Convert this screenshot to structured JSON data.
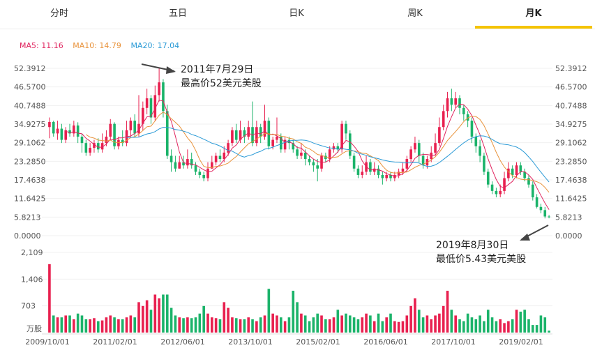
{
  "tabs": [
    {
      "label": "分时",
      "active": false
    },
    {
      "label": "五日",
      "active": false
    },
    {
      "label": "日K",
      "active": false
    },
    {
      "label": "周K",
      "active": false
    },
    {
      "label": "月K",
      "active": true
    }
  ],
  "ma": {
    "ma5": {
      "label": "MA5: 11.16",
      "color": "#e0245e"
    },
    "ma10": {
      "label": "MA10: 14.79",
      "color": "#e8923a"
    },
    "ma20": {
      "label": "MA20: 17.04",
      "color": "#2a9ad6"
    }
  },
  "colors": {
    "up": "#e8204f",
    "down": "#1bb36a"
  },
  "annotations": {
    "high_line1": "2011年7月29日",
    "high_line2": "最高价52美元美股",
    "low_line1": "2019年8月30日",
    "low_line2": "最低价5.43美元美股"
  },
  "chart_data": {
    "type": "candlestick",
    "price_ticks": [
      "52.3912",
      "46.5700",
      "40.7488",
      "34.9275",
      "29.1062",
      "23.2850",
      "17.4638",
      "11.6425",
      "5.8213",
      "0.0000"
    ],
    "price_range": [
      0,
      52.3912
    ],
    "volume_ticks": [
      "2,109",
      "1,406",
      "703"
    ],
    "volume_unit": "万股",
    "volume_range": [
      0,
      2109
    ],
    "x_labels": [
      "2009/10/01",
      "2011/02/01",
      "2012/06/01",
      "2013/10/01",
      "2015/02/01",
      "2016/06/01",
      "2017/10/01",
      "2019/02/01"
    ],
    "candles": [
      [
        34,
        35.6,
        37,
        30.5,
        1800
      ],
      [
        35.6,
        32,
        36,
        31,
        450
      ],
      [
        32,
        33.5,
        36,
        30,
        400
      ],
      [
        33.5,
        30,
        35,
        29,
        400
      ],
      [
        30,
        33,
        34,
        29,
        450
      ],
      [
        33,
        32,
        35,
        31,
        450
      ],
      [
        32,
        34.5,
        36,
        31,
        350
      ],
      [
        34.5,
        31,
        35.5,
        29,
        500
      ],
      [
        31,
        29,
        32,
        26,
        450
      ],
      [
        29,
        26,
        30,
        25,
        350
      ],
      [
        26,
        27.5,
        29,
        25,
        350
      ],
      [
        27.5,
        29,
        30,
        26,
        380
      ],
      [
        29,
        27,
        30.5,
        26,
        300
      ],
      [
        27,
        29,
        32,
        26,
        320
      ],
      [
        29,
        31,
        33,
        28,
        400
      ],
      [
        31,
        35,
        36.5,
        30,
        450
      ],
      [
        35,
        28,
        35.5,
        27,
        400
      ],
      [
        28,
        30,
        31,
        27,
        350
      ],
      [
        30,
        29,
        33,
        28,
        350
      ],
      [
        29,
        33,
        36,
        28,
        400
      ],
      [
        33,
        36,
        37,
        31,
        450
      ],
      [
        36,
        32,
        38,
        31,
        400
      ],
      [
        32,
        35,
        44,
        31,
        800
      ],
      [
        35,
        40,
        42,
        33,
        700
      ],
      [
        40,
        43,
        46,
        38,
        850
      ],
      [
        43,
        37,
        44,
        35,
        600
      ],
      [
        37,
        44,
        47,
        36,
        1000
      ],
      [
        44,
        48,
        52.4,
        42,
        900
      ],
      [
        48,
        39,
        49,
        37,
        1000
      ],
      [
        39,
        25,
        41,
        24,
        1000
      ],
      [
        25,
        23,
        27,
        20,
        650
      ],
      [
        23,
        21,
        25,
        20,
        450
      ],
      [
        21,
        23,
        25,
        21,
        400
      ],
      [
        23,
        22,
        25,
        21,
        380
      ],
      [
        22,
        24,
        27,
        21,
        400
      ],
      [
        24,
        22,
        26,
        21,
        380
      ],
      [
        22,
        20,
        23,
        19,
        400
      ],
      [
        20,
        19,
        21,
        18,
        500
      ],
      [
        19,
        18,
        20,
        17,
        700
      ],
      [
        18,
        21,
        23,
        17,
        500
      ],
      [
        21,
        23,
        25,
        21,
        400
      ],
      [
        23,
        25,
        26,
        22,
        380
      ],
      [
        25,
        24,
        27,
        23,
        350
      ],
      [
        24,
        26,
        28,
        23,
        800
      ],
      [
        26,
        29,
        30,
        25,
        650
      ],
      [
        29,
        33,
        34,
        28,
        400
      ],
      [
        33,
        30,
        35,
        29,
        380
      ],
      [
        30,
        33,
        36,
        29,
        350
      ],
      [
        33,
        31,
        34,
        29,
        350
      ],
      [
        31,
        34,
        36,
        30,
        400
      ],
      [
        34,
        29,
        42,
        28,
        350
      ],
      [
        29,
        34,
        36,
        28,
        300
      ],
      [
        34,
        31,
        35,
        29,
        400
      ],
      [
        31,
        36,
        41,
        30,
        450
      ],
      [
        36,
        28,
        37,
        27,
        1150
      ],
      [
        28,
        30,
        31,
        27,
        500
      ],
      [
        30,
        31,
        37,
        29,
        450
      ],
      [
        31,
        27,
        32,
        26,
        400
      ],
      [
        27,
        30,
        31,
        26,
        300
      ],
      [
        30,
        29,
        31,
        27,
        400
      ],
      [
        29,
        27,
        30,
        26,
        1100
      ],
      [
        27,
        25,
        28,
        24,
        800
      ],
      [
        25,
        26,
        29,
        24,
        500
      ],
      [
        26,
        24,
        27,
        22,
        450
      ],
      [
        24,
        23,
        25,
        22,
        300
      ],
      [
        23,
        22,
        24,
        20,
        400
      ],
      [
        22,
        21,
        24,
        17,
        500
      ],
      [
        21,
        25,
        26,
        20,
        450
      ],
      [
        25,
        24,
        26,
        23,
        350
      ],
      [
        24,
        27,
        28,
        23,
        350
      ],
      [
        27,
        28,
        29,
        26,
        400
      ],
      [
        28,
        27,
        29,
        26,
        600
      ],
      [
        27,
        35,
        36,
        26,
        450
      ],
      [
        35,
        32,
        36,
        30,
        500
      ],
      [
        32,
        25,
        33,
        24,
        450
      ],
      [
        25,
        21,
        26,
        20,
        400
      ],
      [
        21,
        19,
        22,
        18,
        350
      ],
      [
        19,
        20,
        22,
        18,
        400
      ],
      [
        20,
        23,
        25,
        19,
        500
      ],
      [
        23,
        20,
        24,
        19,
        450
      ],
      [
        20,
        21,
        23,
        19,
        300
      ],
      [
        21,
        19,
        22,
        18,
        500
      ],
      [
        19,
        18,
        20,
        16,
        300
      ],
      [
        18,
        19,
        20,
        17,
        400
      ],
      [
        19,
        18,
        20,
        17,
        500
      ],
      [
        18,
        19,
        20,
        17,
        300
      ],
      [
        19,
        20,
        21,
        18,
        280
      ],
      [
        20,
        21,
        23,
        19,
        300
      ],
      [
        21,
        24,
        25,
        20,
        450
      ],
      [
        24,
        27,
        28,
        23,
        700
      ],
      [
        27,
        29,
        31,
        26,
        900
      ],
      [
        29,
        25,
        30,
        23,
        600
      ],
      [
        25,
        22,
        26,
        21,
        400
      ],
      [
        22,
        24,
        25,
        21,
        450
      ],
      [
        24,
        26,
        28,
        23,
        350
      ],
      [
        26,
        29,
        32,
        25,
        450
      ],
      [
        29,
        34,
        37,
        28,
        500
      ],
      [
        34,
        39,
        41,
        33,
        700
      ],
      [
        39,
        43,
        45,
        37,
        1100
      ],
      [
        43,
        41,
        46,
        39,
        600
      ],
      [
        41,
        43,
        45,
        40,
        450
      ],
      [
        43,
        40,
        44,
        38,
        350
      ],
      [
        40,
        38,
        41,
        36,
        300
      ],
      [
        38,
        36,
        39,
        34,
        500
      ],
      [
        36,
        31,
        37,
        29,
        400
      ],
      [
        31,
        28,
        32,
        26,
        350
      ],
      [
        28,
        25,
        30,
        23,
        450
      ],
      [
        25,
        20,
        26,
        19,
        300
      ],
      [
        20,
        16,
        21,
        15,
        600
      ],
      [
        16,
        14,
        17,
        13,
        400
      ],
      [
        14,
        13,
        15,
        12,
        300
      ],
      [
        13,
        14,
        16,
        12,
        350
      ],
      [
        14,
        18,
        20,
        13,
        250
      ],
      [
        18,
        21,
        23,
        17,
        300
      ],
      [
        21,
        19,
        22,
        18,
        350
      ],
      [
        19,
        22,
        23,
        18,
        600
      ],
      [
        22,
        20,
        23,
        19,
        550
      ],
      [
        20,
        18,
        21,
        17,
        600
      ],
      [
        18,
        16,
        19,
        15,
        350
      ],
      [
        16,
        12,
        17,
        11,
        200
      ],
      [
        12,
        9,
        13,
        8.5,
        200
      ],
      [
        9,
        8,
        10,
        7,
        450
      ],
      [
        8,
        6,
        9,
        5.4,
        400
      ],
      [
        6,
        5.8,
        6.5,
        5.43,
        50
      ]
    ]
  }
}
